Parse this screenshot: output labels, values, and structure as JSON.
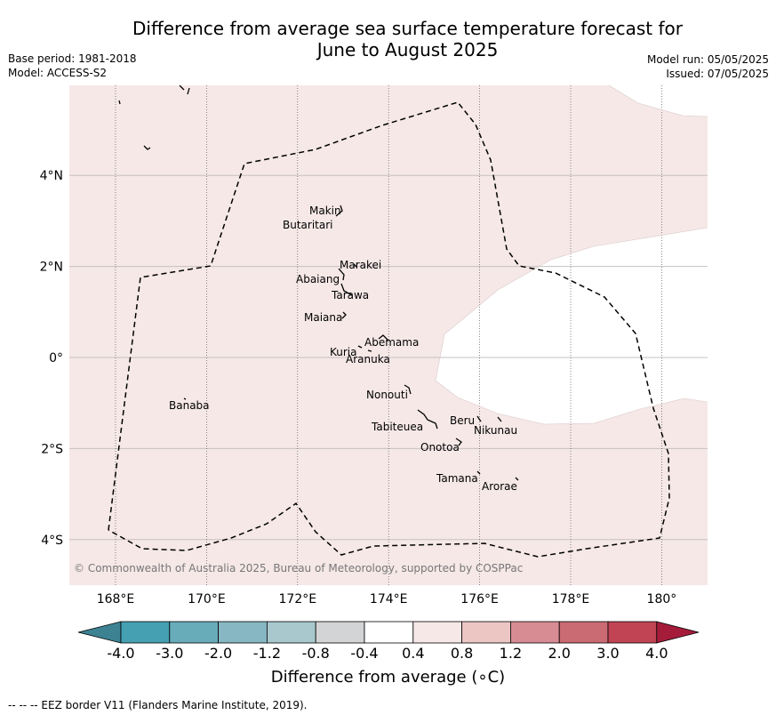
{
  "title_line1": "Difference from average sea surface temperature forecast for",
  "title_line2": "June to August 2025",
  "base_period": "Base period: 1981-2018",
  "model": "Model: ACCESS-S2",
  "model_run": "Model run: 05/05/2025",
  "issued": "Issued: 07/05/2025",
  "copyright": "© Commonwealth of Australia 2025, Bureau of Meteorology, supported by COSPPac",
  "footer": "--  --  -- EEZ border V11 (Flanders Marine Institute, 2019).",
  "map": {
    "lon_ticks": [
      {
        "value": 168,
        "label": "168°E"
      },
      {
        "value": 170,
        "label": "170°E"
      },
      {
        "value": 172,
        "label": "172°E"
      },
      {
        "value": 174,
        "label": "174°E"
      },
      {
        "value": 176,
        "label": "176°E"
      },
      {
        "value": 178,
        "label": "178°E"
      },
      {
        "value": 180,
        "label": "180°"
      }
    ],
    "lat_ticks": [
      {
        "value": 4,
        "label": "4°N"
      },
      {
        "value": 2,
        "label": "2°N"
      },
      {
        "value": 0,
        "label": "0°"
      },
      {
        "value": -2,
        "label": "2°S"
      },
      {
        "value": -4,
        "label": "4°S"
      }
    ],
    "islands": [
      {
        "name": "Makin"
      },
      {
        "name": "Butaritari"
      },
      {
        "name": "Marakei"
      },
      {
        "name": "Abaiang"
      },
      {
        "name": "Tarawa"
      },
      {
        "name": "Maiana"
      },
      {
        "name": "Abemama"
      },
      {
        "name": "Kuria"
      },
      {
        "name": "Aranuka"
      },
      {
        "name": "Nonouti"
      },
      {
        "name": "Banaba"
      },
      {
        "name": "Beru"
      },
      {
        "name": "Tabiteuea"
      },
      {
        "name": "Nikunau"
      },
      {
        "name": "Onotoa"
      },
      {
        "name": "Tamana"
      },
      {
        "name": "Arorae"
      }
    ]
  },
  "colorbar": {
    "title": "Difference from average (∘C)",
    "labels": [
      "-4.0",
      "-3.0",
      "-2.0",
      "-1.2",
      "-0.8",
      "-0.4",
      "0.4",
      "0.8",
      "1.2",
      "2.0",
      "3.0",
      "4.0"
    ],
    "colors": [
      "#3c8292",
      "#45a0b2",
      "#68acba",
      "#86b7c2",
      "#a8c8cd",
      "#d2d4d6",
      "#ffffff",
      "#f6e8e7",
      "#ebc6c3",
      "#d78c93",
      "#ca6a73",
      "#c04454",
      "#a51c3a"
    ]
  },
  "colors": {
    "anomaly_fill": "#f5e8e7",
    "grid": "#c8c0c0",
    "eez": "#000000"
  }
}
